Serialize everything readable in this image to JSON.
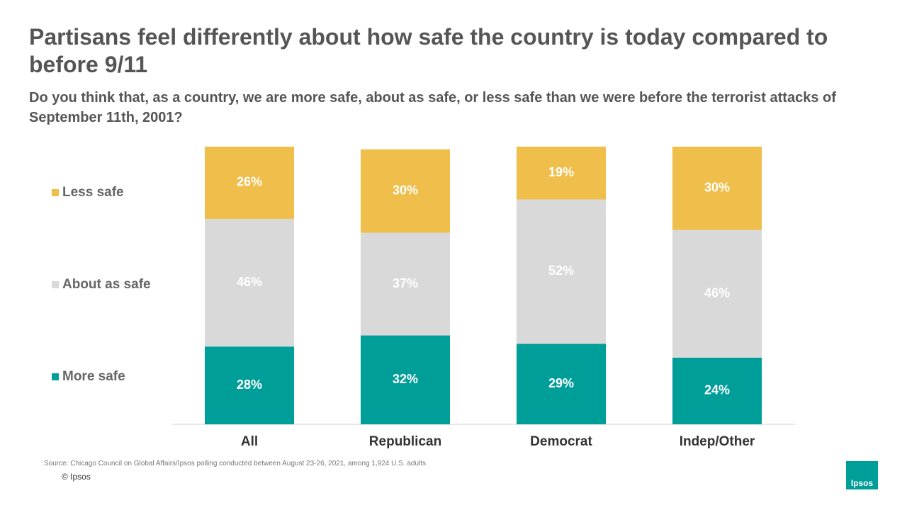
{
  "chart_data": {
    "type": "stacked-bar",
    "title": "Partisans feel differently about how safe the country is today compared to before 9/11",
    "subtitle": "Do you think that, as a country, we are more safe, about as safe, or less safe than we were before the terrorist attacks of September 11th, 2001?",
    "categories": [
      "All",
      "Republican",
      "Democrat",
      "Indep/Other"
    ],
    "series": [
      {
        "name": "More safe",
        "color": "#009e99",
        "values": [
          28,
          32,
          29,
          24
        ],
        "value_labels": [
          "28%",
          "32%",
          "29%",
          "24%"
        ]
      },
      {
        "name": "About as safe",
        "color": "#d9d9d9",
        "values": [
          46,
          37,
          52,
          46
        ],
        "value_labels": [
          "46%",
          "37%",
          "52%",
          "46%"
        ]
      },
      {
        "name": "Less safe",
        "color": "#f0be4b",
        "values": [
          26,
          30,
          19,
          30
        ],
        "value_labels": [
          "26%",
          "30%",
          "19%",
          "30%"
        ]
      }
    ],
    "source": "Source: Chicago Council on Global Affairs/Ipsos polling conducted between August 23-26, 2021, among 1,924 U.S. adults",
    "copyright": "© Ipsos",
    "logo": "Ipsos"
  }
}
